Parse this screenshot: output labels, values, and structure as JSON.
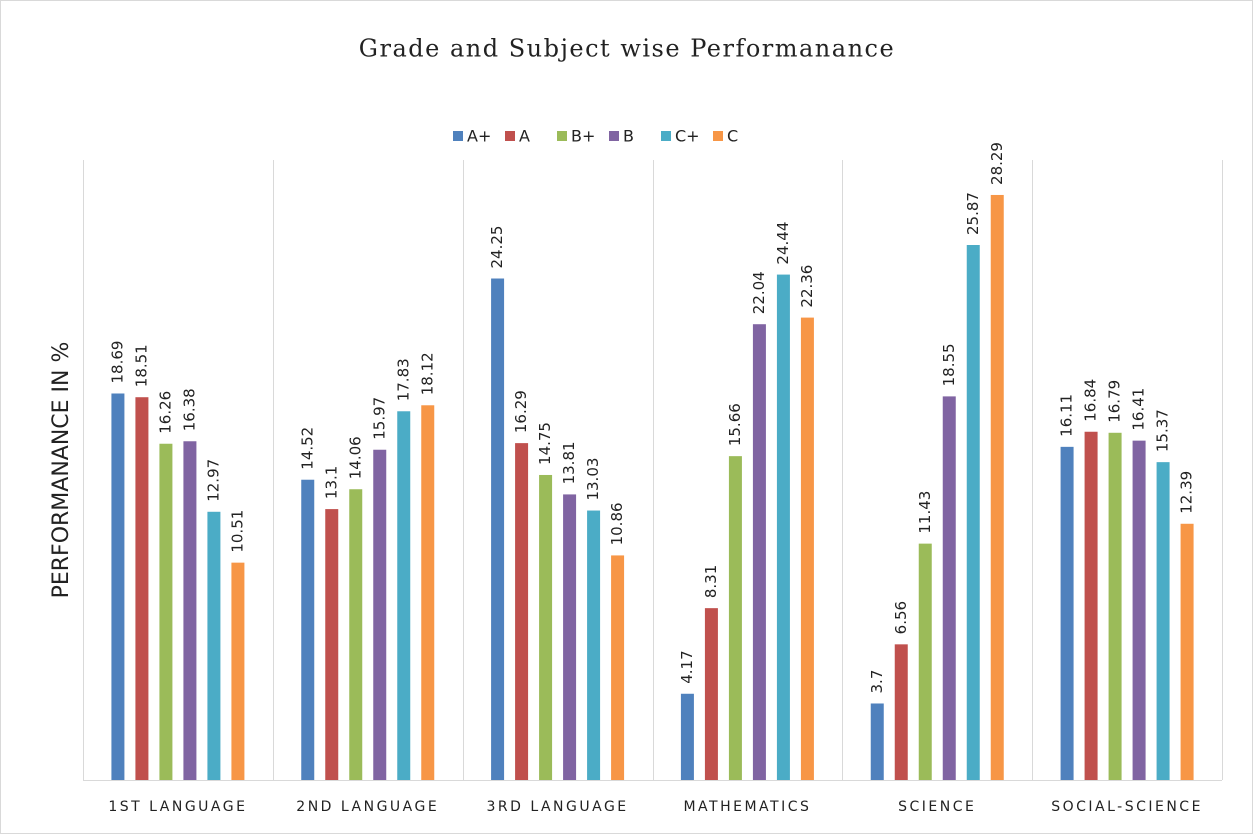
{
  "chart_data": {
    "type": "bar",
    "title": "Grade and Subject wise Performanance",
    "y_label": "PERFORMANANCE IN %",
    "categories": [
      "1ST LANGUAGE",
      "2ND LANGUAGE",
      "3RD LANGUAGE",
      "MATHEMATICS",
      "SCIENCE",
      "SOCIAL-SCIENCE"
    ],
    "legend": "top",
    "series": [
      {
        "name": "A+",
        "color": "#4f81bd",
        "values": [
          18.69,
          14.52,
          24.25,
          4.17,
          3.7,
          16.11
        ]
      },
      {
        "name": "A",
        "color": "#c0504d",
        "values": [
          18.51,
          13.1,
          16.29,
          8.31,
          6.56,
          16.84
        ]
      },
      {
        "name": "B+",
        "color": "#9bbb59",
        "values": [
          16.26,
          14.06,
          14.75,
          15.66,
          11.43,
          16.79
        ]
      },
      {
        "name": "B",
        "color": "#8064a2",
        "values": [
          16.38,
          15.97,
          13.81,
          22.04,
          18.55,
          16.41
        ]
      },
      {
        "name": "C+",
        "color": "#4bacc6",
        "values": [
          12.97,
          17.83,
          13.03,
          24.44,
          25.87,
          15.37
        ]
      },
      {
        "name": "C",
        "color": "#f79646",
        "values": [
          10.51,
          18.12,
          10.86,
          22.36,
          28.29,
          12.39
        ]
      }
    ]
  }
}
